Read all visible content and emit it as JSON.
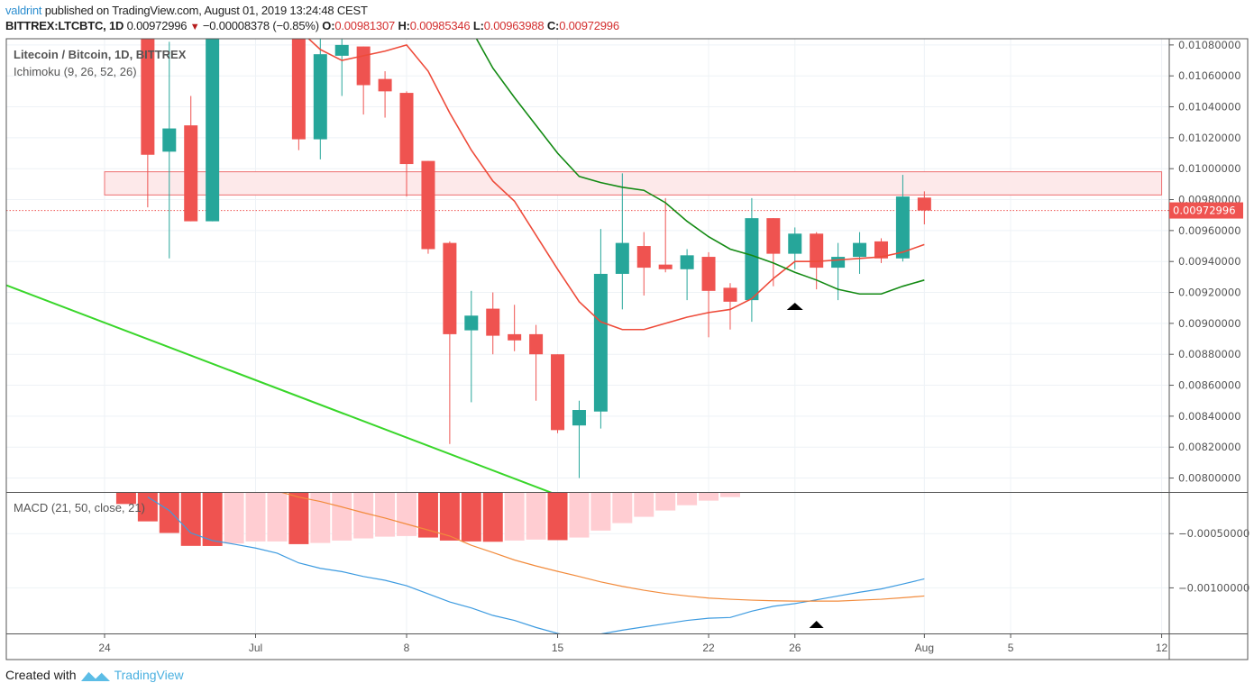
{
  "header": {
    "user": "valdrint",
    "published": "published on TradingView.com, August 01, 2019 13:24:48 CEST",
    "symbol": "BITTREX:LTCBTC, 1D",
    "last": "0.00972996",
    "change": "−0.00008378 (−0.85%)",
    "o_label": "O:",
    "o": "0.00981307",
    "h_label": "H:",
    "h": "0.00985346",
    "l_label": "L:",
    "l": "0.00963988",
    "c_label": "C:",
    "c": "0.00972996",
    "change_icon": "triangle-down-icon"
  },
  "legend": {
    "title": "Litecoin / Bitcoin, 1D, BITTREX",
    "ichimoku": "Ichimoku (9, 26, 52, 26)",
    "macd": "MACD (21, 50, close, 21)"
  },
  "footer": {
    "created": "Created with",
    "brand": "TradingView",
    "logo_icon": "tradingview-logo-icon"
  },
  "colors": {
    "up": "#26a69a",
    "down": "#ef5350",
    "conversion_line": "#ee4b3a",
    "base_line": "#138a13",
    "trendline": "#39d62a",
    "zone_fill": "#fde9ea",
    "zone_stroke": "#ee6e70",
    "macd_line": "#3d9be0",
    "signal_line": "#f28b3c",
    "hist_falling": "#ef5350",
    "hist_rising": "#ffcdd2",
    "grid": "#eef2f6",
    "axis_text": "#555555"
  },
  "chart_data": [
    {
      "type": "candlestick",
      "panel": "price",
      "ylim": [
        0.00791,
        0.01084
      ],
      "xlim": [
        "2019-06-19",
        "2019-08-12"
      ],
      "grid": true,
      "y_ticks": [
        "0.01080000",
        "0.01060000",
        "0.01040000",
        "0.01020000",
        "0.01000000",
        "0.00980000",
        "0.00960000",
        "0.00940000",
        "0.00920000",
        "0.00900000",
        "0.00880000",
        "0.00860000",
        "0.00840000",
        "0.00820000",
        "0.00800000"
      ],
      "last_price": 0.00972996,
      "last_price_label": "0.00972996",
      "candles": [
        {
          "d": "2019-06-26",
          "o": 0.011,
          "h": 0.0111,
          "l": 0.00975,
          "c": 0.01009
        },
        {
          "d": "2019-06-27",
          "o": 0.01011,
          "h": 0.01082,
          "l": 0.00942,
          "c": 0.01026
        },
        {
          "d": "2019-06-28",
          "o": 0.01028,
          "h": 0.01047,
          "l": 0.00966,
          "c": 0.00966
        },
        {
          "d": "2019-06-29",
          "o": 0.00966,
          "h": 0.0111,
          "l": 0.00966,
          "c": 0.011
        },
        {
          "d": "2019-07-03",
          "o": 0.011,
          "h": 0.0111,
          "l": 0.01012,
          "c": 0.01019
        },
        {
          "d": "2019-07-04",
          "o": 0.01019,
          "h": 0.01085,
          "l": 0.01006,
          "c": 0.01074
        },
        {
          "d": "2019-07-05",
          "o": 0.01073,
          "h": 0.01084,
          "l": 0.01047,
          "c": 0.0108
        },
        {
          "d": "2019-07-06",
          "o": 0.01079,
          "h": 0.01079,
          "l": 0.01035,
          "c": 0.01054
        },
        {
          "d": "2019-07-07",
          "o": 0.01058,
          "h": 0.01063,
          "l": 0.01033,
          "c": 0.0105
        },
        {
          "d": "2019-07-08",
          "o": 0.01049,
          "h": 0.0105,
          "l": 0.00982,
          "c": 0.01003
        },
        {
          "d": "2019-07-09",
          "o": 0.01005,
          "h": 0.01005,
          "l": 0.00945,
          "c": 0.00948
        },
        {
          "d": "2019-07-10",
          "o": 0.00952,
          "h": 0.00953,
          "l": 0.00822,
          "c": 0.00893
        },
        {
          "d": "2019-07-11",
          "o": 0.008955,
          "h": 0.00921,
          "l": 0.00849,
          "c": 0.00905
        },
        {
          "d": "2019-07-12",
          "o": 0.009095,
          "h": 0.0092,
          "l": 0.0088,
          "c": 0.00892
        },
        {
          "d": "2019-07-13",
          "o": 0.00893,
          "h": 0.00912,
          "l": 0.00882,
          "c": 0.00889
        },
        {
          "d": "2019-07-14",
          "o": 0.00893,
          "h": 0.00899,
          "l": 0.0085,
          "c": 0.0088
        },
        {
          "d": "2019-07-15",
          "o": 0.0088,
          "h": 0.0088,
          "l": 0.00829,
          "c": 0.00831
        },
        {
          "d": "2019-07-16",
          "o": 0.00834,
          "h": 0.0085,
          "l": 0.008,
          "c": 0.00844
        },
        {
          "d": "2019-07-17",
          "o": 0.00843,
          "h": 0.00961,
          "l": 0.00832,
          "c": 0.00932
        },
        {
          "d": "2019-07-18",
          "o": 0.00932,
          "h": 0.00997,
          "l": 0.00909,
          "c": 0.00952
        },
        {
          "d": "2019-07-19",
          "o": 0.0095,
          "h": 0.00959,
          "l": 0.00918,
          "c": 0.00936
        },
        {
          "d": "2019-07-20",
          "o": 0.00938,
          "h": 0.00981,
          "l": 0.00933,
          "c": 0.00935
        },
        {
          "d": "2019-07-21",
          "o": 0.00935,
          "h": 0.00948,
          "l": 0.00915,
          "c": 0.00944
        },
        {
          "d": "2019-07-22",
          "o": 0.00943,
          "h": 0.00946,
          "l": 0.00891,
          "c": 0.00921
        },
        {
          "d": "2019-07-23",
          "o": 0.00923,
          "h": 0.00926,
          "l": 0.00896,
          "c": 0.00914
        },
        {
          "d": "2019-07-24",
          "o": 0.00915,
          "h": 0.00981,
          "l": 0.00901,
          "c": 0.00968
        },
        {
          "d": "2019-07-25",
          "o": 0.00968,
          "h": 0.00968,
          "l": 0.00924,
          "c": 0.00945
        },
        {
          "d": "2019-07-26",
          "o": 0.00945,
          "h": 0.00962,
          "l": 0.00935,
          "c": 0.00958
        },
        {
          "d": "2019-07-27",
          "o": 0.00958,
          "h": 0.00959,
          "l": 0.00922,
          "c": 0.00936
        },
        {
          "d": "2019-07-28",
          "o": 0.00936,
          "h": 0.00952,
          "l": 0.00915,
          "c": 0.00943
        },
        {
          "d": "2019-07-29",
          "o": 0.00943,
          "h": 0.00959,
          "l": 0.00932,
          "c": 0.00952
        },
        {
          "d": "2019-07-30",
          "o": 0.00953,
          "h": 0.00955,
          "l": 0.00939,
          "c": 0.00942
        },
        {
          "d": "2019-07-31",
          "o": 0.00942,
          "h": 0.00996,
          "l": 0.0094,
          "c": 0.00982
        },
        {
          "d": "2019-08-01",
          "o": 0.00981307,
          "h": 0.00985346,
          "l": 0.00963988,
          "c": 0.00972996
        }
      ],
      "conversion_line": [
        [
          "2019-07-03",
          0.0109
        ],
        [
          "2019-07-04",
          0.01077
        ],
        [
          "2019-07-05",
          0.0107
        ],
        [
          "2019-07-06",
          0.01073
        ],
        [
          "2019-07-07",
          0.01076
        ],
        [
          "2019-07-08",
          0.0108
        ],
        [
          "2019-07-09",
          0.01063
        ],
        [
          "2019-07-10",
          0.01036
        ],
        [
          "2019-07-11",
          0.01012
        ],
        [
          "2019-07-12",
          0.00992
        ],
        [
          "2019-07-13",
          0.00979
        ],
        [
          "2019-07-14",
          0.00957
        ],
        [
          "2019-07-15",
          0.00935
        ],
        [
          "2019-07-16",
          0.00914
        ],
        [
          "2019-07-17",
          0.00901
        ],
        [
          "2019-07-18",
          0.00896
        ],
        [
          "2019-07-19",
          0.00896
        ],
        [
          "2019-07-20",
          0.009
        ],
        [
          "2019-07-21",
          0.00904
        ],
        [
          "2019-07-22",
          0.00907
        ],
        [
          "2019-07-23",
          0.00909
        ],
        [
          "2019-07-24",
          0.00916
        ],
        [
          "2019-07-25",
          0.00929
        ],
        [
          "2019-07-26",
          0.0094
        ],
        [
          "2019-07-27",
          0.0094
        ],
        [
          "2019-07-28",
          0.00941
        ],
        [
          "2019-07-29",
          0.00942
        ],
        [
          "2019-07-30",
          0.00943
        ],
        [
          "2019-07-31",
          0.00946
        ],
        [
          "2019-08-01",
          0.00951
        ]
      ],
      "base_line": [
        [
          "2019-07-11",
          0.0109
        ],
        [
          "2019-07-12",
          0.01065
        ],
        [
          "2019-07-13",
          0.01046
        ],
        [
          "2019-07-14",
          0.01028
        ],
        [
          "2019-07-15",
          0.0101
        ],
        [
          "2019-07-16",
          0.00995
        ],
        [
          "2019-07-17",
          0.00991
        ],
        [
          "2019-07-18",
          0.00988
        ],
        [
          "2019-07-19",
          0.00986
        ],
        [
          "2019-07-20",
          0.00978
        ],
        [
          "2019-07-21",
          0.00966
        ],
        [
          "2019-07-22",
          0.00956
        ],
        [
          "2019-07-23",
          0.00948
        ],
        [
          "2019-07-24",
          0.00944
        ],
        [
          "2019-07-25",
          0.00939
        ],
        [
          "2019-07-26",
          0.00933
        ],
        [
          "2019-07-27",
          0.00928
        ],
        [
          "2019-07-28",
          0.00922
        ],
        [
          "2019-07-29",
          0.00919
        ],
        [
          "2019-07-30",
          0.00919
        ],
        [
          "2019-07-31",
          0.00924
        ],
        [
          "2019-08-01",
          0.00928
        ]
      ],
      "trendline": [
        [
          "2019-06-19",
          0.00927
        ],
        [
          "2019-07-15",
          0.00789
        ]
      ],
      "resistance_zone": {
        "from": "2019-06-24",
        "to": "2019-08-12",
        "low": 0.00983,
        "high": 0.00998
      },
      "markers": [
        {
          "d": "2019-07-26",
          "price": 0.00911,
          "shape": "triangle-up"
        }
      ]
    },
    {
      "type": "macd",
      "panel": "macd",
      "ylim": [
        -0.00142,
        -0.000116
      ],
      "y_ticks": [
        {
          "v": -0.0005,
          "label": "−0.00050000"
        },
        {
          "v": -0.001,
          "label": "−0.00100000"
        }
      ],
      "histogram": [
        [
          "2019-06-25",
          -0.000227
        ],
        [
          "2019-06-26",
          -0.000387
        ],
        [
          "2019-06-27",
          -0.000494
        ],
        [
          "2019-06-28",
          -0.000613
        ],
        [
          "2019-06-29",
          -0.000614
        ],
        [
          "2019-06-30",
          -0.000591
        ],
        [
          "2019-07-01",
          -0.000572
        ],
        [
          "2019-07-02",
          -0.000572
        ],
        [
          "2019-07-03",
          -0.000597
        ],
        [
          "2019-07-04",
          -0.000586
        ],
        [
          "2019-07-05",
          -0.000564
        ],
        [
          "2019-07-06",
          -0.000544
        ],
        [
          "2019-07-07",
          -0.000528
        ],
        [
          "2019-07-08",
          -0.000522
        ],
        [
          "2019-07-09",
          -0.000536
        ],
        [
          "2019-07-10",
          -0.000564
        ],
        [
          "2019-07-11",
          -0.000572
        ],
        [
          "2019-07-12",
          -0.000575
        ],
        [
          "2019-07-13",
          -0.000564
        ],
        [
          "2019-07-14",
          -0.000555
        ],
        [
          "2019-07-15",
          -0.00056
        ],
        [
          "2019-07-16",
          -0.000536
        ],
        [
          "2019-07-17",
          -0.000472
        ],
        [
          "2019-07-18",
          -0.000403
        ],
        [
          "2019-07-19",
          -0.000345
        ],
        [
          "2019-07-20",
          -0.000287
        ],
        [
          "2019-07-21",
          -0.000238
        ],
        [
          "2019-07-22",
          -0.000196
        ],
        [
          "2019-07-23",
          -0.000163
        ]
      ],
      "macd_line": [
        [
          "2019-06-26",
          -0.000163
        ],
        [
          "2019-06-27",
          -0.000287
        ],
        [
          "2019-06-28",
          -0.000494
        ],
        [
          "2019-06-29",
          -0.000564
        ],
        [
          "2019-06-30",
          -0.000597
        ],
        [
          "2019-07-01",
          -0.000633
        ],
        [
          "2019-07-02",
          -0.00068
        ],
        [
          "2019-07-03",
          -0.00077
        ],
        [
          "2019-07-04",
          -0.00082
        ],
        [
          "2019-07-05",
          -0.00085
        ],
        [
          "2019-07-06",
          -0.000895
        ],
        [
          "2019-07-07",
          -0.00093
        ],
        [
          "2019-07-08",
          -0.00098
        ],
        [
          "2019-07-09",
          -0.001055
        ],
        [
          "2019-07-10",
          -0.00113
        ],
        [
          "2019-07-11",
          -0.001185
        ],
        [
          "2019-07-12",
          -0.001254
        ],
        [
          "2019-07-13",
          -0.0013
        ],
        [
          "2019-07-14",
          -0.001365
        ],
        [
          "2019-07-15",
          -0.00142
        ],
        [
          "2019-07-16",
          -0.00146
        ],
        [
          "2019-07-17",
          -0.001425
        ],
        [
          "2019-07-18",
          -0.00139
        ],
        [
          "2019-07-19",
          -0.00136
        ],
        [
          "2019-07-20",
          -0.00133
        ],
        [
          "2019-07-21",
          -0.0013
        ],
        [
          "2019-07-22",
          -0.00128
        ],
        [
          "2019-07-23",
          -0.001273
        ],
        [
          "2019-07-24",
          -0.001215
        ],
        [
          "2019-07-25",
          -0.00117
        ],
        [
          "2019-07-26",
          -0.001145
        ],
        [
          "2019-07-27",
          -0.00111
        ],
        [
          "2019-07-28",
          -0.001075
        ],
        [
          "2019-07-29",
          -0.00104
        ],
        [
          "2019-07-30",
          -0.00101
        ],
        [
          "2019-07-31",
          -0.000965
        ],
        [
          "2019-08-01",
          -0.000917
        ]
      ],
      "signal_line": [
        [
          "2019-07-02",
          -0.000108
        ],
        [
          "2019-07-03",
          -0.000163
        ],
        [
          "2019-07-04",
          -0.000204
        ],
        [
          "2019-07-05",
          -0.000254
        ],
        [
          "2019-07-06",
          -0.000307
        ],
        [
          "2019-07-07",
          -0.000356
        ],
        [
          "2019-07-08",
          -0.000412
        ],
        [
          "2019-07-09",
          -0.000467
        ],
        [
          "2019-07-10",
          -0.000522
        ],
        [
          "2019-07-11",
          -0.000608
        ],
        [
          "2019-07-12",
          -0.000674
        ],
        [
          "2019-07-13",
          -0.000743
        ],
        [
          "2019-07-14",
          -0.000798
        ],
        [
          "2019-07-15",
          -0.000848
        ],
        [
          "2019-07-16",
          -0.000895
        ],
        [
          "2019-07-17",
          -0.000945
        ],
        [
          "2019-07-18",
          -0.000986
        ],
        [
          "2019-07-19",
          -0.001022
        ],
        [
          "2019-07-20",
          -0.001052
        ],
        [
          "2019-07-21",
          -0.001075
        ],
        [
          "2019-07-22",
          -0.001094
        ],
        [
          "2019-07-23",
          -0.001105
        ],
        [
          "2019-07-24",
          -0.001113
        ],
        [
          "2019-07-25",
          -0.001119
        ],
        [
          "2019-07-26",
          -0.001122
        ],
        [
          "2019-07-27",
          -0.001122
        ],
        [
          "2019-07-28",
          -0.001122
        ],
        [
          "2019-07-29",
          -0.001113
        ],
        [
          "2019-07-30",
          -0.001105
        ],
        [
          "2019-07-31",
          -0.001091
        ],
        [
          "2019-08-01",
          -0.001075
        ]
      ],
      "markers": [
        {
          "d": "2019-07-27",
          "v": -0.001337,
          "shape": "triangle-up"
        }
      ]
    }
  ],
  "time_axis": {
    "ticks": [
      {
        "d": "2019-06-24",
        "label": "24"
      },
      {
        "d": "2019-07-01",
        "label": "Jul"
      },
      {
        "d": "2019-07-08",
        "label": "8"
      },
      {
        "d": "2019-07-15",
        "label": "15"
      },
      {
        "d": "2019-07-22",
        "label": "22"
      },
      {
        "d": "2019-07-26",
        "label": "26"
      },
      {
        "d": "2019-08-01",
        "label": "Aug"
      },
      {
        "d": "2019-08-05",
        "label": "5"
      },
      {
        "d": "2019-08-12",
        "label": "12"
      }
    ]
  }
}
